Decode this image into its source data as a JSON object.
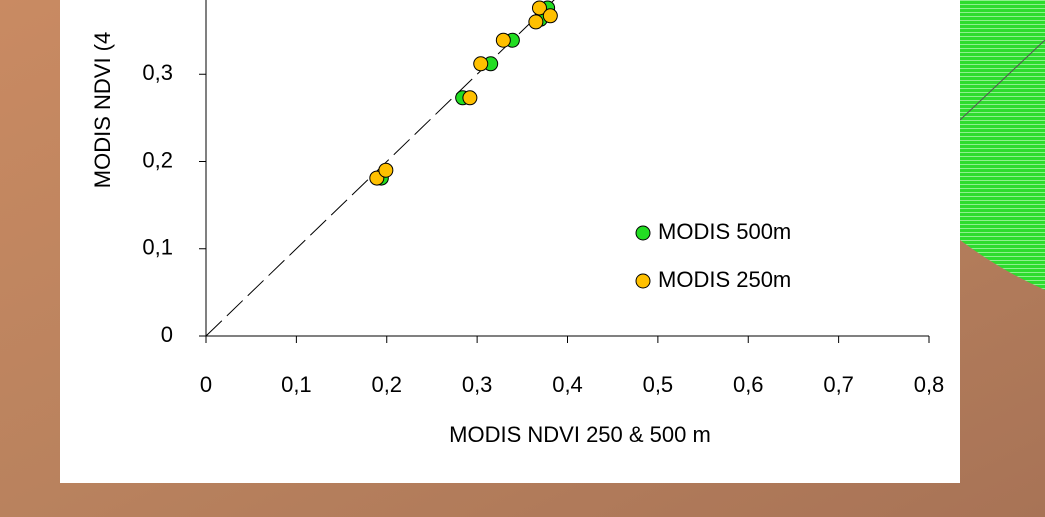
{
  "chart_data": {
    "type": "scatter",
    "x_label": "MODIS NDVI 250 & 500 m",
    "y_label": "MODIS NDVI (4",
    "xlim": [
      0,
      0.8
    ],
    "ylim": [
      0,
      0.4
    ],
    "xticks": [
      0,
      {
        "value": 0.1,
        "label": "0,1"
      },
      {
        "value": 0.2,
        "label": "0,2"
      },
      {
        "value": 0.3,
        "label": "0,3"
      },
      {
        "value": 0.4,
        "label": "0,4"
      },
      {
        "value": 0.5,
        "label": "0,5"
      },
      {
        "value": 0.6,
        "label": "0,6"
      },
      {
        "value": 0.7,
        "label": "0,7"
      },
      {
        "value": 0.8,
        "label": "0,8"
      }
    ],
    "yticks": [
      0,
      {
        "value": 0.1,
        "label": "0,1"
      },
      {
        "value": 0.2,
        "label": "0,2"
      },
      {
        "value": 0.3,
        "label": "0,3"
      }
    ],
    "series": [
      {
        "name": "MODIS 500m",
        "color": "#22dd22",
        "x": [
          0.194,
          0.284,
          0.315,
          0.339,
          0.37,
          0.378
        ],
        "values": [
          0.181,
          0.273,
          0.312,
          0.339,
          0.363,
          0.376
        ]
      },
      {
        "name": "MODIS 250m",
        "color": "#ffc000",
        "x": [
          0.189,
          0.199,
          0.292,
          0.304,
          0.329,
          0.365,
          0.369,
          0.381
        ],
        "values": [
          0.181,
          0.19,
          0.273,
          0.312,
          0.339,
          0.36,
          0.376,
          0.367
        ]
      }
    ]
  }
}
